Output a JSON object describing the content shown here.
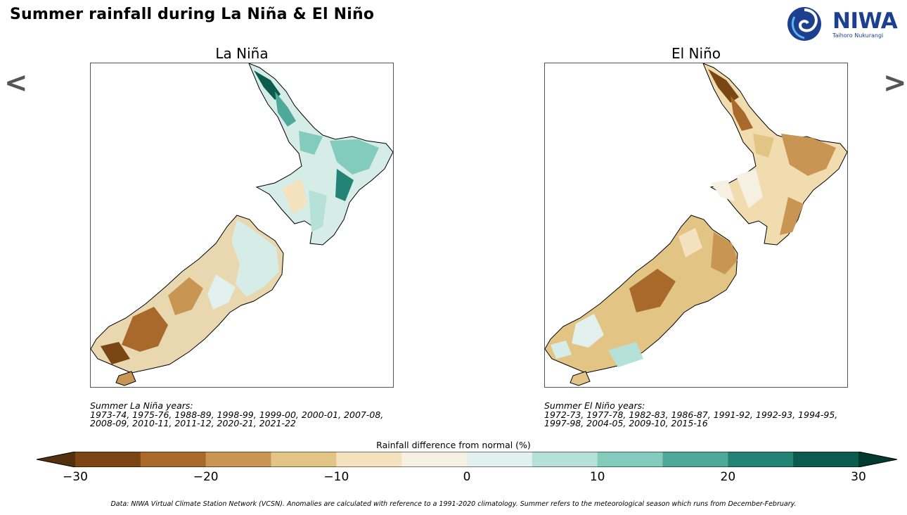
{
  "title": "Summer rainfall during La Niña & El Niño",
  "logo": {
    "name": "NIWA",
    "subtitle": "Taihoro Nukurangi"
  },
  "nav": {
    "prev": "<",
    "next": ">"
  },
  "panels": [
    {
      "title": "La Niña",
      "years_label": "Summer La Niña years:",
      "years_line1": "1973-74, 1975-76, 1988-89, 1998-99, 1999-00, 2000-01, 2007-08,",
      "years_line2": "2008-09, 2010-11, 2011-12, 2020-21, 2021-22"
    },
    {
      "title": "El Niño",
      "years_label": "Summer El Niño years:",
      "years_line1": "1972-73, 1977-78, 1982-83, 1986-87, 1991-92, 1992-93, 1994-95,",
      "years_line2": "1997-98, 2004-05, 2009-10, 2015-16"
    }
  ],
  "colorbar": {
    "label": "Rainfall difference from normal (%)",
    "ticks": [
      "−30",
      "−20",
      "−10",
      "0",
      "10",
      "20",
      "30"
    ],
    "min": -30,
    "max": 30,
    "colors": [
      "#7a4614",
      "#a8692a",
      "#c89552",
      "#e2c585",
      "#f3e2bd",
      "#f6f0e3",
      "#e2f0ee",
      "#b6e1d9",
      "#82cbbd",
      "#4fa99b",
      "#238475",
      "#0b5c4f"
    ],
    "under_color": "#523010",
    "over_color": "#033a30"
  },
  "footer": "Data: NIWA Virtual Climate Station Network (VCSN). Anomalies are calculated with reference to a 1991-2020 climatology. Summer refers to the meteorological season which runs from December-February."
}
